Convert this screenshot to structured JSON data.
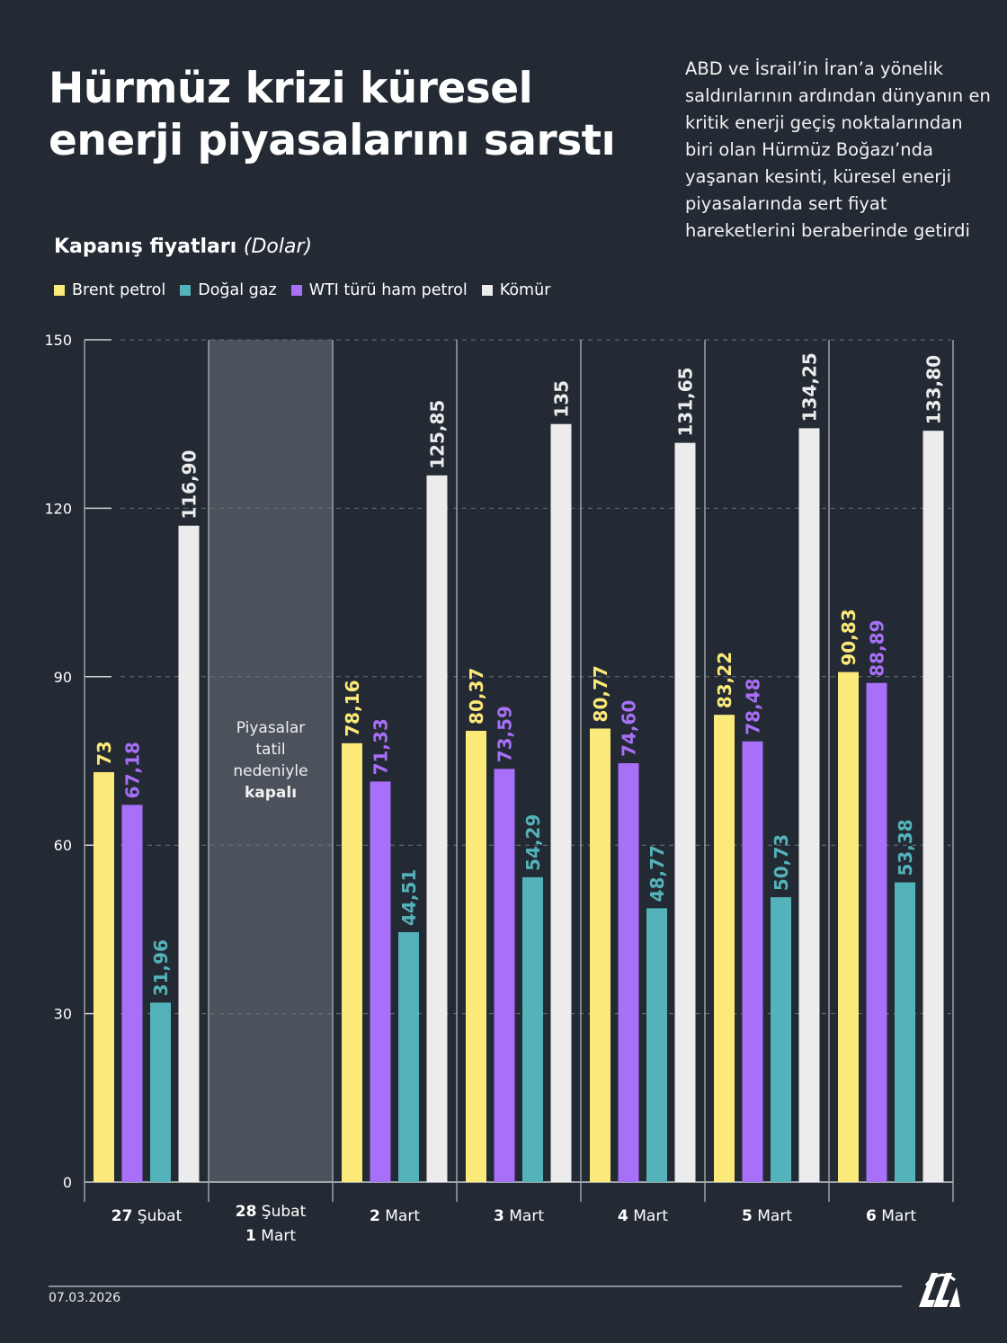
{
  "header": {
    "title_line1": "Hürmüz krizi küresel",
    "title_line2": "enerji piyasalarını sarstı",
    "description": "ABD ve İsrail’in İran’a yönelik saldırılarının ardından dünyanın en kritik enerji geçiş noktalarından biri olan Hürmüz Boğazı’nda yaşanan kesinti, küresel enerji piyasalarında sert fiyat hareketlerini beraberinde getirdi"
  },
  "chart_data": {
    "type": "bar",
    "subtitle": "Kapanış fiyatları",
    "unit": "(Dolar)",
    "ylim": [
      0,
      150
    ],
    "yticks": [
      0,
      30,
      60,
      90,
      120,
      150
    ],
    "grid": true,
    "legend": "top-left",
    "categories": [
      {
        "bold": "27",
        "rest": "Şubat"
      },
      {
        "bold": "28",
        "rest": "Şubat",
        "bold2": "1",
        "rest2": "Mart"
      },
      {
        "bold": "2",
        "rest": "Mart"
      },
      {
        "bold": "3",
        "rest": "Mart"
      },
      {
        "bold": "4",
        "rest": "Mart"
      },
      {
        "bold": "5",
        "rest": "Mart"
      },
      {
        "bold": "6",
        "rest": "Mart"
      }
    ],
    "closed_note": {
      "lines": [
        "Piyasalar",
        "tatil",
        "nedeniyle"
      ],
      "bold": "kapalı",
      "category_index": 1
    },
    "series": [
      {
        "name": "Brent petrol",
        "color": "#fbe97a",
        "values": [
          73,
          null,
          78.16,
          80.37,
          80.77,
          83.22,
          90.83
        ],
        "labels": [
          "73",
          null,
          "78,16",
          "80,37",
          "80,77",
          "83,22",
          "90,83"
        ]
      },
      {
        "name": "WTI türü ham petrol",
        "color": "#a86ff8",
        "values": [
          67.18,
          null,
          71.33,
          73.59,
          74.6,
          78.48,
          88.89
        ],
        "labels": [
          "67,18",
          null,
          "71,33",
          "73,59",
          "74,60",
          "78,48",
          "88,89"
        ]
      },
      {
        "name": "Doğal gaz",
        "color": "#54b3ba",
        "values": [
          31.96,
          null,
          44.51,
          54.29,
          48.77,
          50.73,
          53.38
        ],
        "labels": [
          "31,96",
          null,
          "44,51",
          "54,29",
          "48,77",
          "50,73",
          "53,38"
        ]
      },
      {
        "name": "Kömür",
        "color": "#ececec",
        "values": [
          116.9,
          null,
          125.85,
          135,
          131.65,
          134.25,
          133.8
        ],
        "labels": [
          "116,90",
          null,
          "125,85",
          "135",
          "131,65",
          "134,25",
          "133,80"
        ]
      }
    ],
    "legend_order": [
      0,
      2,
      1,
      3
    ]
  },
  "footer": {
    "date": "07.03.2026",
    "logo": "AA"
  }
}
